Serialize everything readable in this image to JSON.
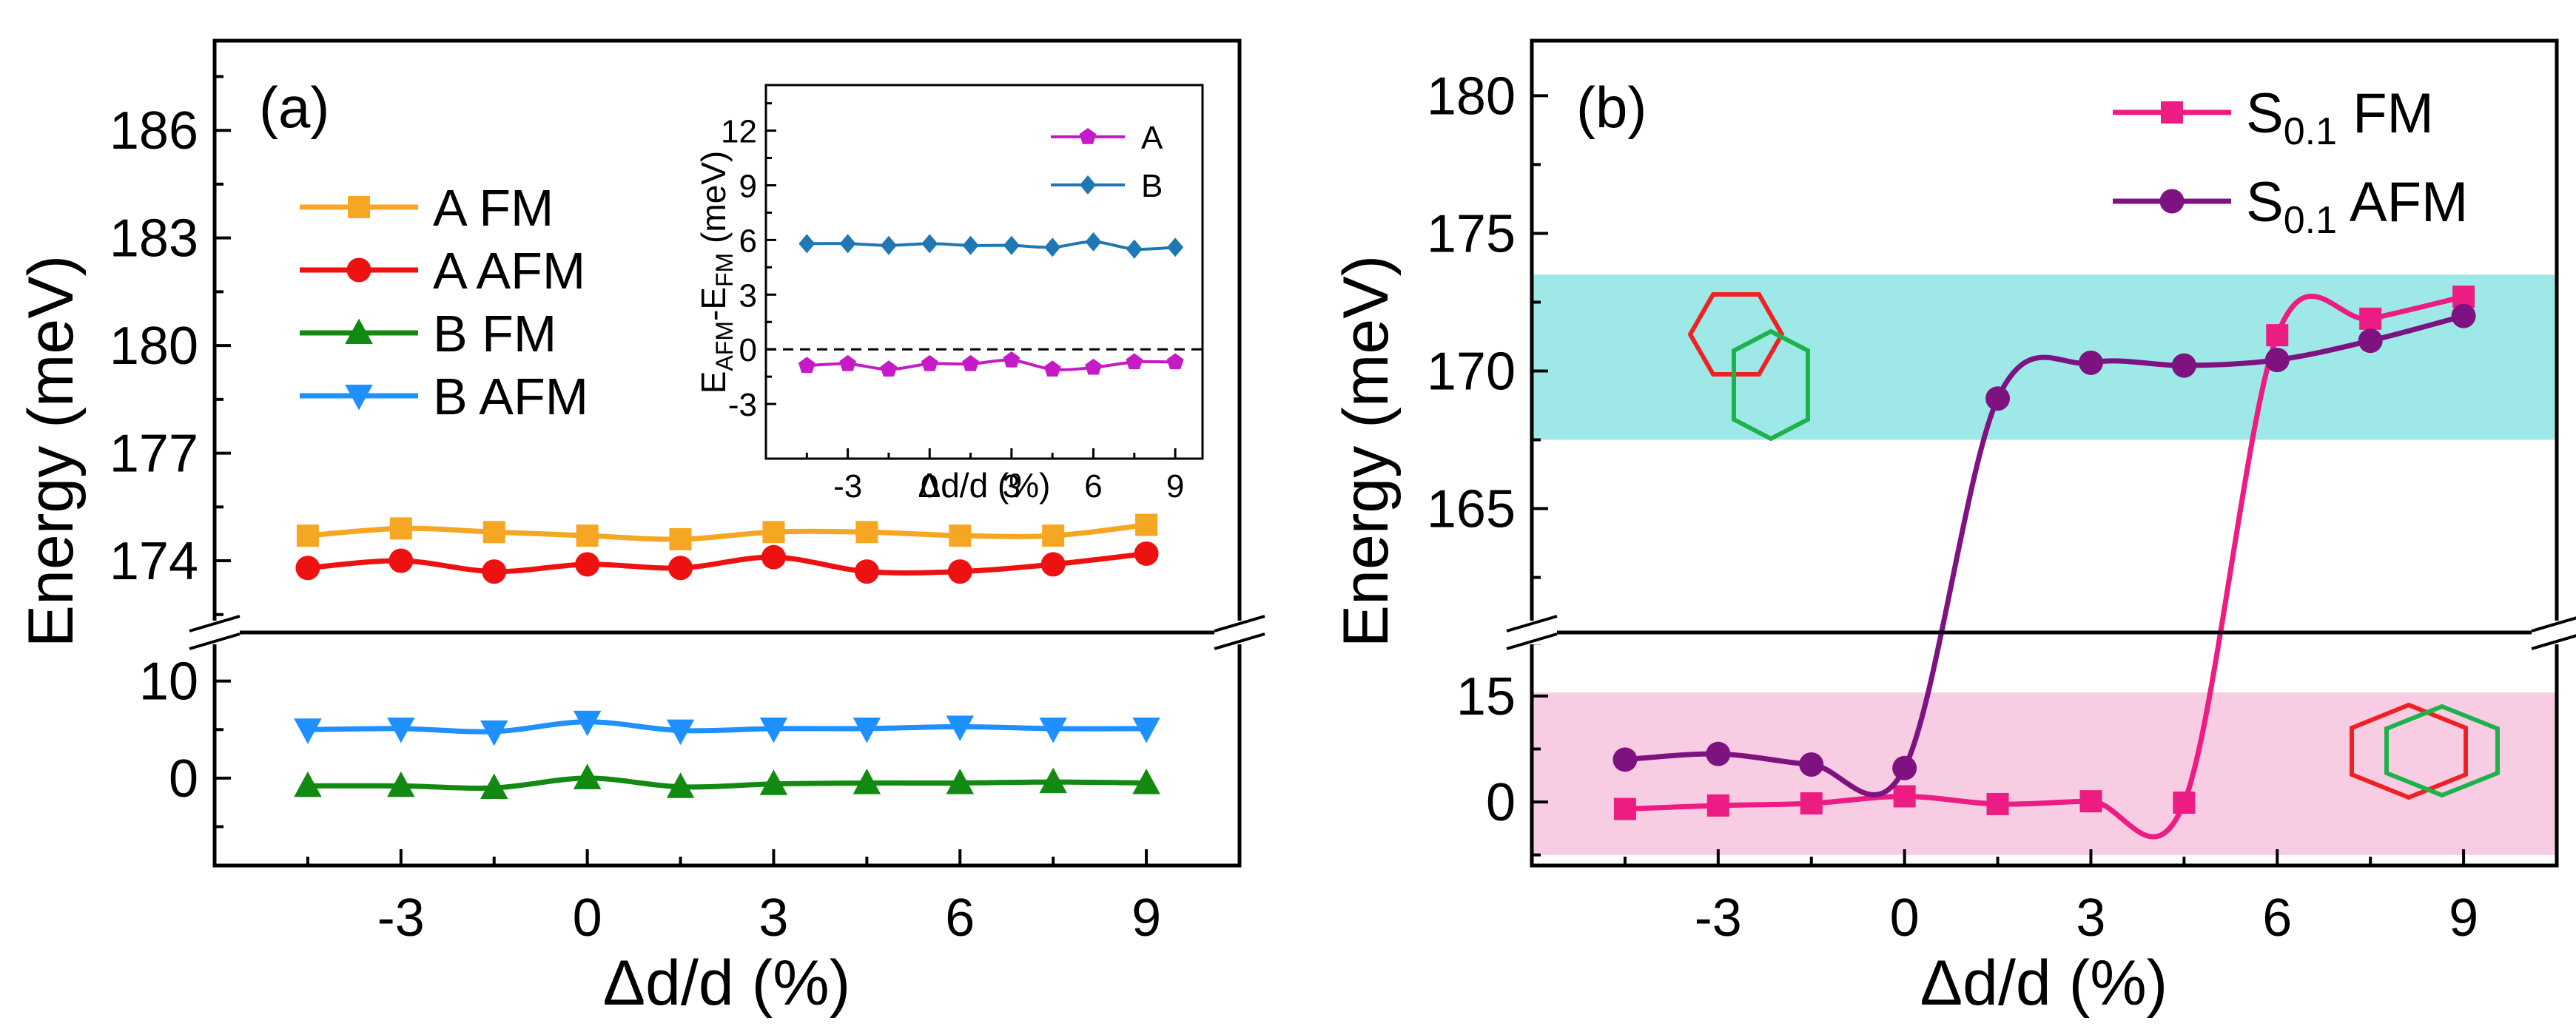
{
  "chart_data": [
    {
      "panel": "(a)",
      "type": "line",
      "xlabel": "Δd/d (%)",
      "ylabel": "Energy (meV)",
      "broken_y_axis": true,
      "x": [
        -4.5,
        -3,
        -1.5,
        0,
        1.5,
        3,
        4.5,
        6,
        7.5,
        9
      ],
      "x_ticks": [
        -3,
        0,
        3,
        6,
        9
      ],
      "xlim": [
        -6,
        10.5
      ],
      "y_upper_range": [
        172,
        188.5
      ],
      "y_upper_ticks": [
        174,
        177,
        180,
        183,
        186
      ],
      "y_lower_range": [
        -9,
        15
      ],
      "y_lower_ticks": [
        0,
        10
      ],
      "legend_position": "upper-left",
      "series": [
        {
          "name": "A FM",
          "color": "#f5a623",
          "marker": "square",
          "segment": "upper",
          "values": [
            174.7,
            174.9,
            174.8,
            174.7,
            174.6,
            174.8,
            174.8,
            174.7,
            174.7,
            175.0
          ]
        },
        {
          "name": "A AFM",
          "color": "#ee1111",
          "marker": "circle",
          "segment": "upper",
          "values": [
            173.8,
            174.0,
            173.7,
            173.9,
            173.8,
            174.1,
            173.7,
            173.7,
            173.9,
            174.2
          ]
        },
        {
          "name": "B FM",
          "color": "#128a12",
          "marker": "triangle-up",
          "segment": "lower",
          "values": [
            -0.8,
            -0.8,
            -1.0,
            0.0,
            -0.9,
            -0.6,
            -0.5,
            -0.5,
            -0.4,
            -0.5
          ]
        },
        {
          "name": "B AFM",
          "color": "#1e90ff",
          "marker": "triangle-down",
          "segment": "lower",
          "values": [
            5.0,
            5.1,
            4.8,
            5.8,
            4.9,
            5.1,
            5.1,
            5.3,
            5.1,
            5.1
          ]
        }
      ],
      "inset": {
        "type": "line",
        "xlabel": "Δd/d (%)",
        "ylabel_main": "E",
        "ylabel_sub1": "AFM",
        "ylabel_dash": "-E",
        "ylabel_sub2": "FM",
        "ylabel_unit": " (meV)",
        "x": [
          -4.5,
          -3,
          -1.5,
          0,
          1.5,
          3,
          4.5,
          6,
          7.5,
          9
        ],
        "x_ticks": [
          -3,
          0,
          3,
          6,
          9
        ],
        "xlim": [
          -6,
          10
        ],
        "ylim": [
          -6,
          14.5
        ],
        "y_ticks": [
          -3,
          0,
          3,
          6,
          9,
          12
        ],
        "reference_line": 0,
        "legend_position": "upper-right",
        "series": [
          {
            "name": "A",
            "color": "#c51ac5",
            "marker": "pentagon",
            "values": [
              -0.9,
              -0.8,
              -1.1,
              -0.8,
              -0.8,
              -0.6,
              -1.1,
              -1.0,
              -0.7,
              -0.7
            ]
          },
          {
            "name": "B",
            "color": "#1f77b4",
            "marker": "diamond",
            "values": [
              5.8,
              5.8,
              5.7,
              5.8,
              5.7,
              5.7,
              5.6,
              5.9,
              5.5,
              5.6
            ]
          }
        ]
      }
    },
    {
      "panel": "(b)",
      "type": "line",
      "xlabel": "Δd/d (%)",
      "ylabel": "Energy (meV)",
      "broken_y_axis": true,
      "x": [
        -4.5,
        -3,
        -1.5,
        0,
        1.5,
        3,
        4.5,
        6,
        7.5,
        9
      ],
      "x_ticks": [
        -3,
        0,
        3,
        6,
        9
      ],
      "xlim": [
        -6,
        10.5
      ],
      "y_upper_range": [
        160.5,
        182
      ],
      "y_upper_ticks": [
        165,
        170,
        175,
        180
      ],
      "y_lower_range": [
        -9,
        24
      ],
      "y_lower_ticks": [
        0,
        15
      ],
      "legend_position": "upper-right",
      "shaded_bands": [
        {
          "segment": "upper",
          "from": 167.5,
          "to": 173.5,
          "color": "#9ee8e8"
        },
        {
          "segment": "lower",
          "from": -7.5,
          "to": 15.5,
          "color": "#f8cde4"
        }
      ],
      "series": [
        {
          "name": "S0.1 FM",
          "label_main": "S",
          "label_sub": "0.1",
          "label_rest": " FM",
          "color": "#ec1c83",
          "marker": "square",
          "values": [
            -1.0,
            -0.5,
            -0.2,
            0.8,
            -0.3,
            0.1,
            -0.1,
            171.3,
            171.9,
            172.7
          ]
        },
        {
          "name": "S0.1 AFM",
          "label_main": "S",
          "label_sub": "0.1",
          "label_rest": " AFM",
          "color": "#7d1280",
          "marker": "circle",
          "values": [
            6.0,
            6.8,
            5.3,
            4.8,
            169.0,
            170.3,
            170.2,
            170.4,
            171.1,
            172.0
          ]
        }
      ]
    }
  ]
}
